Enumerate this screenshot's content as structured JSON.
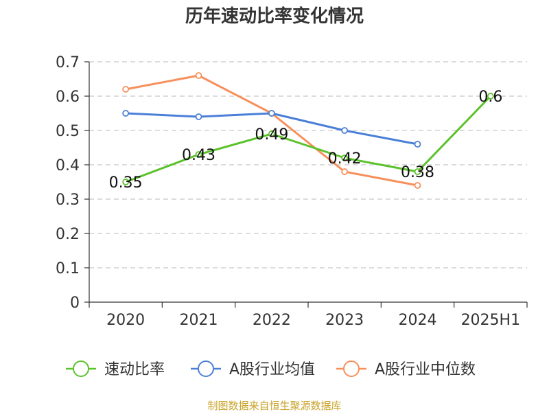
{
  "chart_data": {
    "type": "line",
    "title": "历年速动比率变化情况",
    "categories": [
      "2020",
      "2021",
      "2022",
      "2023",
      "2024",
      "2025H1"
    ],
    "ylim": [
      0,
      0.7
    ],
    "yticks": [
      "0",
      "0.1",
      "0.2",
      "0.3",
      "0.4",
      "0.5",
      "0.6",
      "0.7"
    ],
    "grid": true,
    "legend_position": "bottom",
    "series": [
      {
        "name": "速动比率",
        "color": "#5cc22c",
        "values": [
          0.35,
          0.43,
          0.49,
          0.42,
          0.38,
          0.6
        ],
        "labels": [
          "0.35",
          "0.43",
          "0.49",
          "0.42",
          "0.38",
          "0.6"
        ]
      },
      {
        "name": "A股行业均值",
        "color": "#4a7fd8",
        "values": [
          0.55,
          0.54,
          0.55,
          0.5,
          0.46,
          null
        ]
      },
      {
        "name": "A股行业中位数",
        "color": "#f78f5a",
        "values": [
          0.62,
          0.66,
          0.55,
          0.38,
          0.34,
          null
        ]
      }
    ],
    "source": "制图数据来自恒生聚源数据库"
  }
}
